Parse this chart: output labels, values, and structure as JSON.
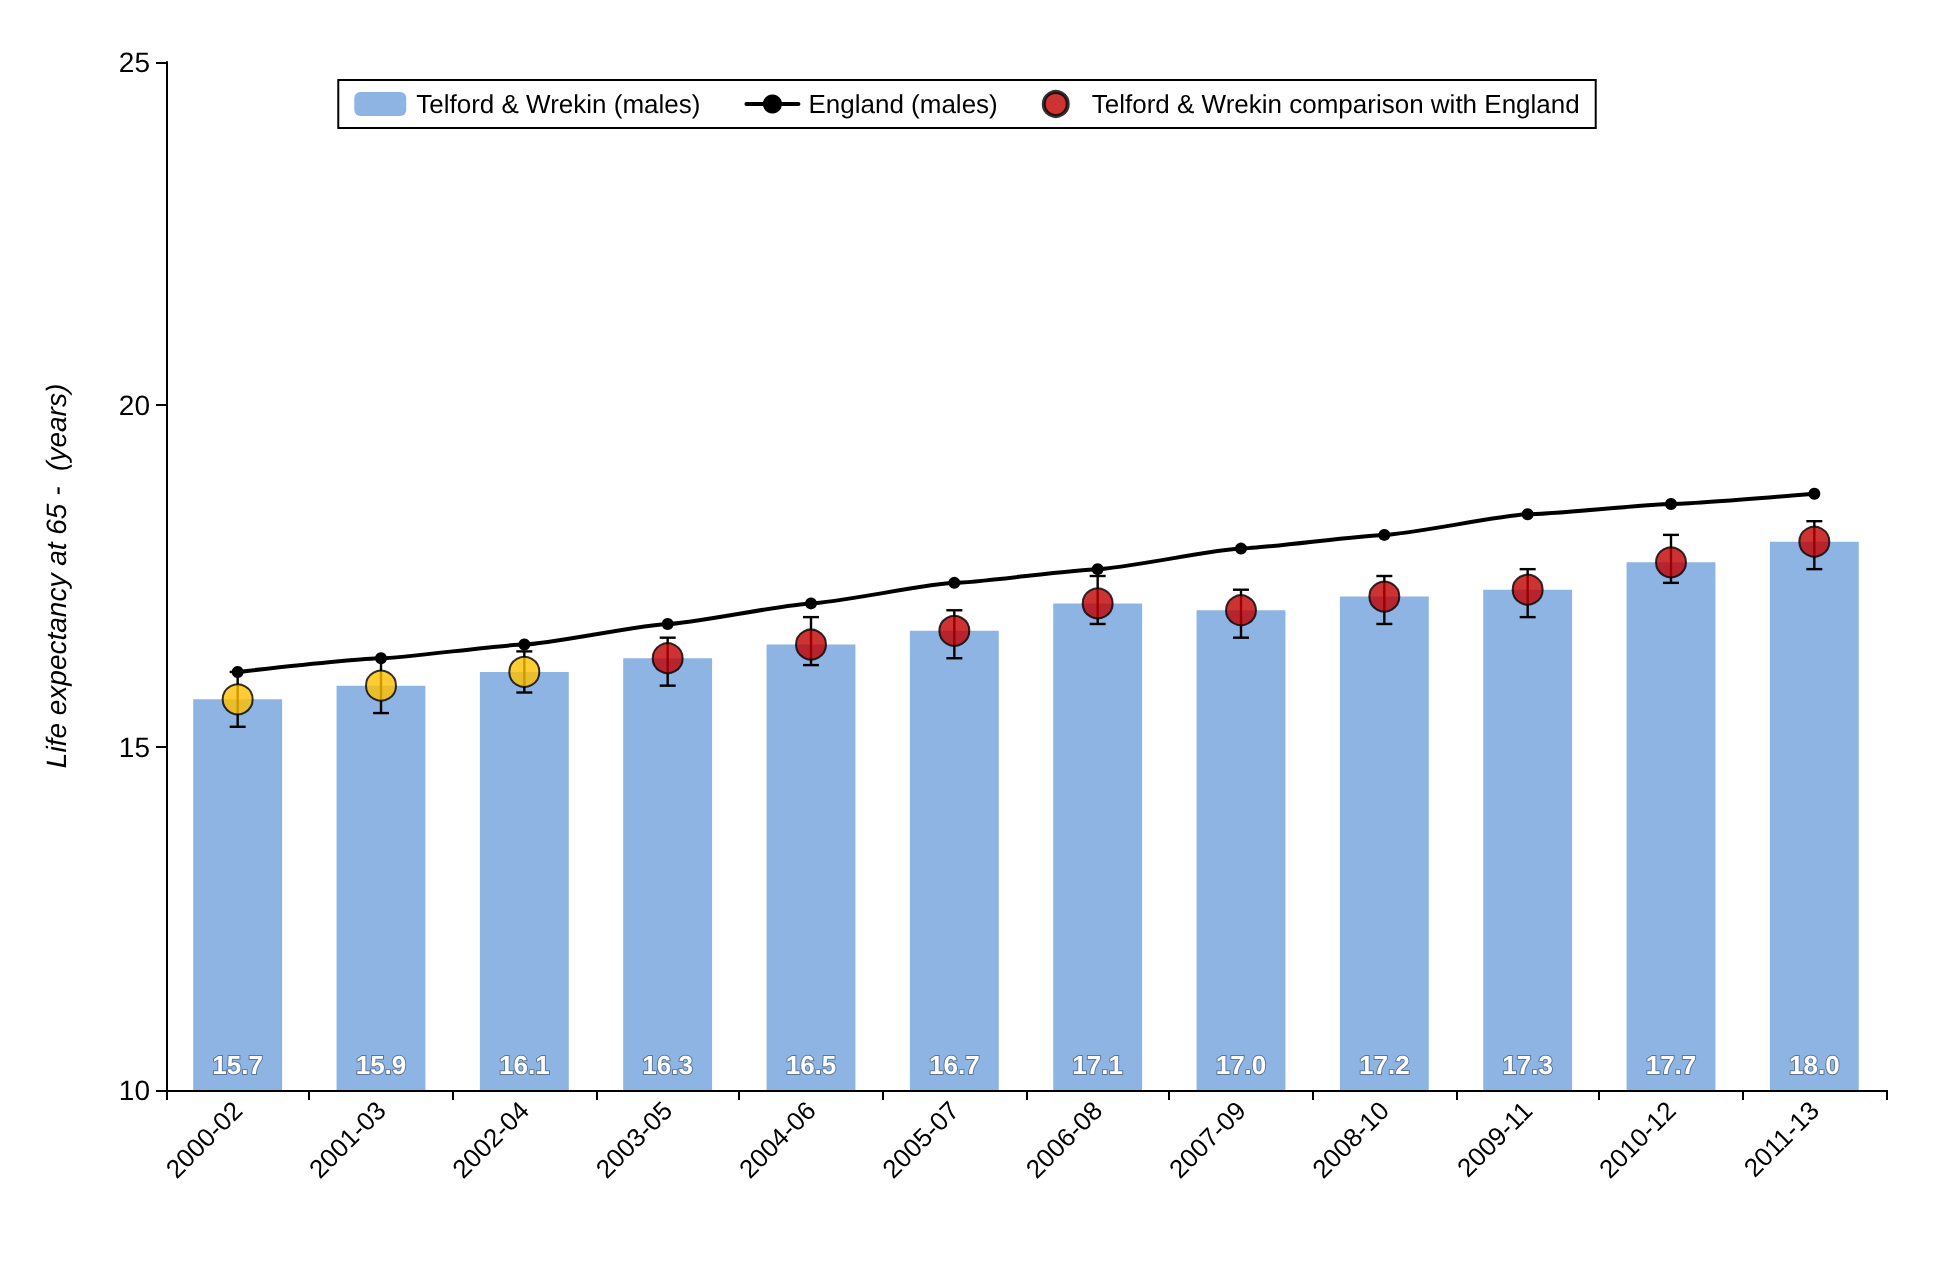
{
  "chart_data": {
    "type": "bar",
    "ylabel": "Life expectancy at 65 -  (years)",
    "categories": [
      "2000-02",
      "2001-03",
      "2002-04",
      "2003-05",
      "2004-06",
      "2005-07",
      "2006-08",
      "2007-09",
      "2008-10",
      "2009-11",
      "2010-12",
      "2011-13"
    ],
    "series": [
      {
        "name": "Telford & Wrekin (males)",
        "color": "#8eb4e3",
        "values": [
          15.7,
          15.9,
          16.1,
          16.3,
          16.5,
          16.7,
          17.1,
          17.0,
          17.2,
          17.3,
          17.7,
          18.0
        ],
        "value_labels": [
          "15.7",
          "15.9",
          "16.1",
          "16.3",
          "16.5",
          "16.7",
          "17.1",
          "17.0",
          "17.2",
          "17.3",
          "17.7",
          "18.0"
        ]
      },
      {
        "name": "England (males)",
        "type": "line",
        "color": "#000000",
        "marker": "circle",
        "values": [
          16.1,
          16.3,
          16.5,
          16.8,
          17.1,
          17.4,
          17.6,
          17.9,
          18.1,
          18.4,
          18.55,
          18.7
        ]
      },
      {
        "name": "Telford & Wrekin comparison with England",
        "type": "scatter",
        "color": "#c00000",
        "marker": "circle",
        "colors": [
          "#ffc000",
          "#ffc000",
          "#ffc000",
          "#c00000",
          "#c00000",
          "#c00000",
          "#c00000",
          "#c00000",
          "#c00000",
          "#c00000",
          "#c00000",
          "#c00000"
        ],
        "values": [
          15.7,
          15.9,
          16.1,
          16.3,
          16.5,
          16.7,
          17.1,
          17.0,
          17.2,
          17.3,
          17.7,
          18.0
        ],
        "errors": [
          [
            15.3,
            16.1
          ],
          [
            15.5,
            16.3
          ],
          [
            15.8,
            16.4
          ],
          [
            15.9,
            16.6
          ],
          [
            16.2,
            16.9
          ],
          [
            16.3,
            17.0
          ],
          [
            16.8,
            17.5
          ],
          [
            16.6,
            17.3
          ],
          [
            16.8,
            17.5
          ],
          [
            16.9,
            17.6
          ],
          [
            17.4,
            18.1
          ],
          [
            17.6,
            18.3
          ]
        ]
      }
    ],
    "ylim": [
      10,
      25
    ],
    "yticks": [
      10,
      15,
      20,
      25
    ],
    "grid": false,
    "legend": "top"
  }
}
